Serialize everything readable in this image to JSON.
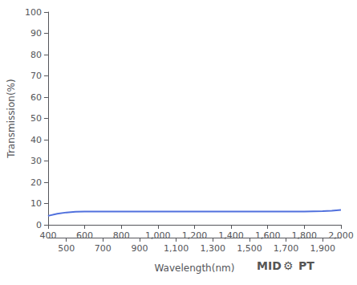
{
  "chart_data": {
    "type": "line",
    "xlabel": "Wavelength(nm)",
    "ylabel": "Transmission(%)",
    "x": [
      400,
      450,
      500,
      550,
      600,
      650,
      700,
      750,
      800,
      850,
      900,
      950,
      1000,
      1050,
      1100,
      1150,
      1200,
      1250,
      1300,
      1350,
      1400,
      1450,
      1500,
      1550,
      1600,
      1650,
      1700,
      1750,
      1800,
      1850,
      1900,
      1950,
      2000
    ],
    "values": [
      4.2,
      5.2,
      5.8,
      6.1,
      6.2,
      6.2,
      6.2,
      6.2,
      6.2,
      6.2,
      6.2,
      6.2,
      6.2,
      6.2,
      6.2,
      6.2,
      6.2,
      6.2,
      6.2,
      6.2,
      6.2,
      6.2,
      6.2,
      6.2,
      6.2,
      6.2,
      6.2,
      6.2,
      6.2,
      6.3,
      6.4,
      6.6,
      7.0
    ],
    "xlim": [
      400,
      2000
    ],
    "ylim": [
      0,
      100
    ],
    "xticks": [
      400,
      500,
      600,
      700,
      800,
      900,
      1000,
      1100,
      1200,
      1300,
      1400,
      1500,
      1600,
      1700,
      1800,
      1900,
      2000
    ],
    "yticks": [
      0,
      10,
      20,
      30,
      40,
      50,
      60,
      70,
      80,
      90,
      100
    ],
    "grid": false,
    "annotations": [
      "MID",
      "⚙",
      "PT"
    ]
  }
}
